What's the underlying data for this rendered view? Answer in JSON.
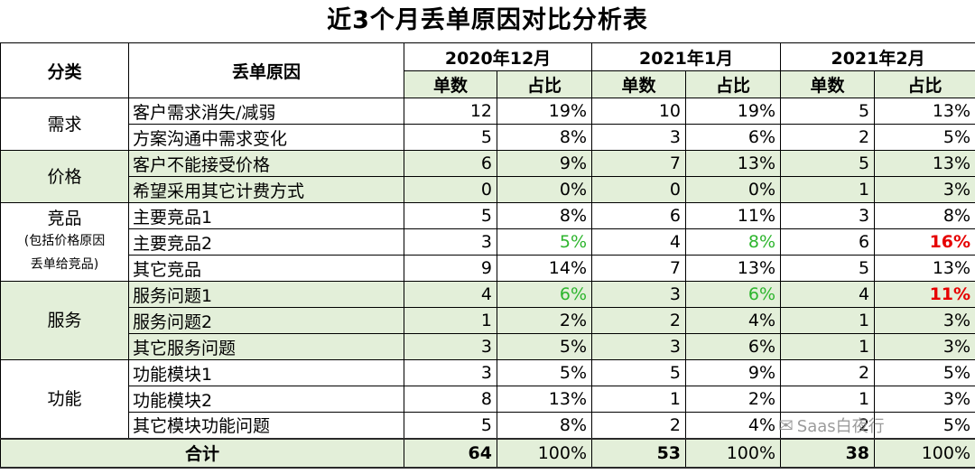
{
  "title": "近3个月丢单原因对比分析表",
  "header": {
    "category": "分类",
    "reason": "丢单原因",
    "months": [
      "2020年12月",
      "2021年1月",
      "2021年2月"
    ],
    "count": "单数",
    "ratio": "占比"
  },
  "rows": [
    {
      "category": "需求",
      "reason": "客户需求消失/减弱",
      "v": [
        "12",
        "19%",
        "10",
        "19%",
        "5",
        "13%"
      ]
    },
    {
      "reason": "方案沟通中需求变化",
      "v": [
        "5",
        "8%",
        "3",
        "6%",
        "2",
        "5%"
      ]
    },
    {
      "category": "价格",
      "reason": "客户不能接受价格",
      "v": [
        "6",
        "9%",
        "7",
        "13%",
        "5",
        "13%"
      ]
    },
    {
      "reason": "希望采用其它计费方式",
      "v": [
        "0",
        "0%",
        "0",
        "0%",
        "1",
        "3%"
      ]
    },
    {
      "category": "竞品",
      "category_note_1": "(包括价格原因",
      "category_note_2": "丢单给竞品)",
      "reason": "主要竞品1",
      "v": [
        "5",
        "8%",
        "6",
        "11%",
        "3",
        "8%"
      ]
    },
    {
      "reason": "主要竞品2",
      "v": [
        "3",
        "5%",
        "4",
        "8%",
        "6",
        "16%"
      ]
    },
    {
      "reason": "其它竞品",
      "v": [
        "9",
        "14%",
        "7",
        "13%",
        "5",
        "13%"
      ]
    },
    {
      "category": "服务",
      "reason": "服务问题1",
      "v": [
        "4",
        "6%",
        "3",
        "6%",
        "4",
        "11%"
      ]
    },
    {
      "reason": "服务问题2",
      "v": [
        "1",
        "2%",
        "2",
        "4%",
        "1",
        "3%"
      ]
    },
    {
      "reason": "其它服务问题",
      "v": [
        "3",
        "5%",
        "3",
        "6%",
        "1",
        "3%"
      ]
    },
    {
      "category": "功能",
      "reason": "功能模块1",
      "v": [
        "3",
        "5%",
        "5",
        "9%",
        "2",
        "5%"
      ]
    },
    {
      "reason": "功能模块2",
      "v": [
        "8",
        "13%",
        "1",
        "2%",
        "1",
        "3%"
      ]
    },
    {
      "reason": "其它模块功能问题",
      "v": [
        "5",
        "8%",
        "2",
        "4%",
        "2",
        "5%"
      ]
    }
  ],
  "total": {
    "label": "合计",
    "v": [
      "64",
      "100%",
      "53",
      "100%",
      "38",
      "100%"
    ]
  },
  "colors": {
    "header_bg": "#e3efd9",
    "highlight_green": "#2db52d",
    "highlight_red": "#e60000"
  },
  "watermark": {
    "text": "Saas白夜行",
    "icon": "wechat-icon"
  }
}
